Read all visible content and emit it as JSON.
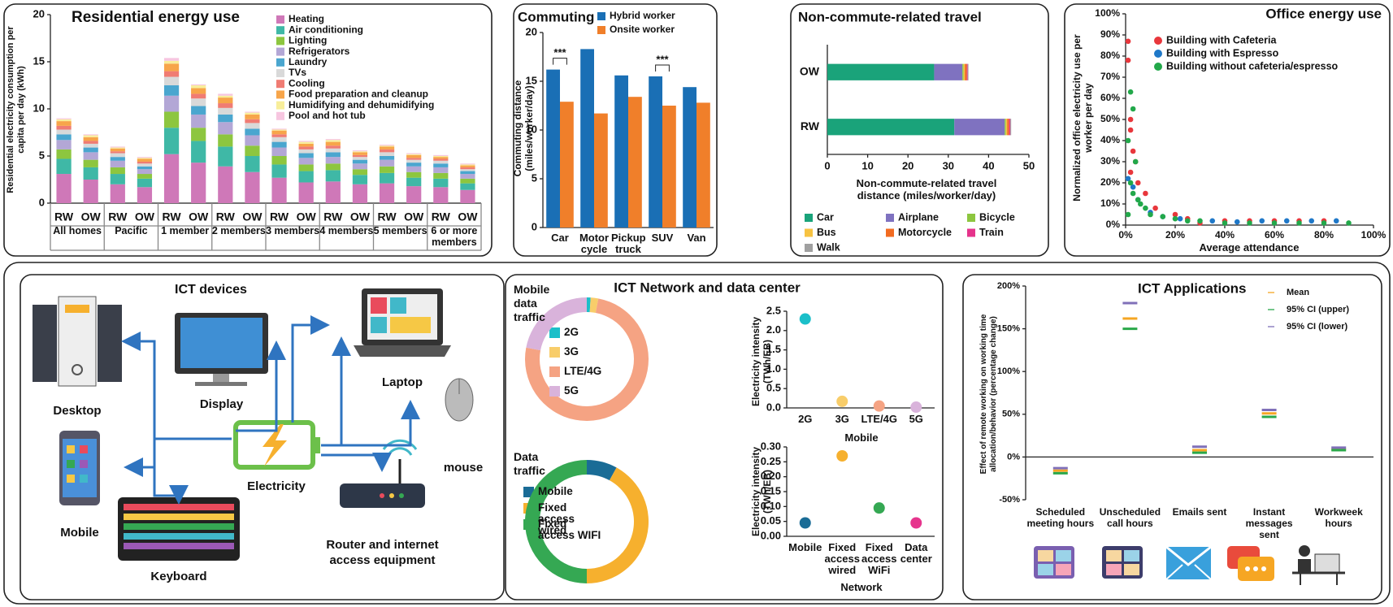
{
  "chart_data": [
    {
      "type": "bar",
      "stacked": true,
      "title": "Residential energy use",
      "ylabel": "Residential electricity consumption per capita per day (kWh)",
      "categories": [
        "RW",
        "OW",
        "RW",
        "OW",
        "RW",
        "OW",
        "RW",
        "OW",
        "RW",
        "OW",
        "RW",
        "OW",
        "RW",
        "OW",
        "RW",
        "OW"
      ],
      "groups": [
        "All homes",
        "Pacific",
        "1 member",
        "2 members",
        "3 members",
        "4 members",
        "5 members",
        "6 or more members"
      ],
      "ylim": [
        0,
        20
      ],
      "yticks": [
        0,
        5,
        10,
        15,
        20
      ],
      "series": [
        {
          "name": "Heating",
          "color": "#cf78b8",
          "values": [
            3.1,
            2.5,
            2.0,
            1.7,
            5.2,
            4.3,
            3.9,
            3.3,
            2.7,
            2.2,
            2.3,
            2.0,
            2.1,
            1.8,
            1.7,
            1.4
          ]
        },
        {
          "name": "Air conditioning",
          "color": "#3fb8a6",
          "values": [
            1.6,
            1.3,
            1.1,
            0.9,
            2.8,
            2.3,
            2.1,
            1.7,
            1.4,
            1.2,
            1.2,
            1.0,
            1.1,
            0.9,
            0.9,
            0.7
          ]
        },
        {
          "name": "Lighting",
          "color": "#8dc63f",
          "values": [
            1.0,
            0.8,
            0.7,
            0.5,
            1.7,
            1.4,
            1.3,
            1.1,
            0.9,
            0.7,
            0.7,
            0.6,
            0.7,
            0.6,
            0.6,
            0.5
          ]
        },
        {
          "name": "Refrigerators",
          "color": "#b3a7d6",
          "values": [
            1.0,
            0.8,
            0.7,
            0.5,
            1.7,
            1.4,
            1.3,
            1.1,
            0.9,
            0.7,
            0.7,
            0.6,
            0.7,
            0.6,
            0.6,
            0.5
          ]
        },
        {
          "name": "Laundry",
          "color": "#4aa6cf",
          "values": [
            0.6,
            0.5,
            0.4,
            0.3,
            1.1,
            0.9,
            0.8,
            0.7,
            0.6,
            0.5,
            0.5,
            0.4,
            0.4,
            0.4,
            0.4,
            0.3
          ]
        },
        {
          "name": "TVs",
          "color": "#d9d9d9",
          "values": [
            0.5,
            0.4,
            0.4,
            0.3,
            0.9,
            0.8,
            0.7,
            0.6,
            0.5,
            0.4,
            0.4,
            0.3,
            0.4,
            0.3,
            0.3,
            0.2
          ]
        },
        {
          "name": "Cooling",
          "color": "#f07c73",
          "values": [
            0.4,
            0.3,
            0.2,
            0.2,
            0.6,
            0.5,
            0.5,
            0.4,
            0.3,
            0.3,
            0.3,
            0.2,
            0.3,
            0.2,
            0.2,
            0.2
          ]
        },
        {
          "name": "Food preparation and cleanup",
          "color": "#f7a54a",
          "values": [
            0.5,
            0.4,
            0.3,
            0.3,
            0.8,
            0.6,
            0.6,
            0.5,
            0.4,
            0.3,
            0.4,
            0.3,
            0.3,
            0.3,
            0.2,
            0.2
          ]
        },
        {
          "name": "Humidifying and dehumidifying",
          "color": "#f8ee9a",
          "values": [
            0.2,
            0.2,
            0.1,
            0.1,
            0.3,
            0.3,
            0.2,
            0.2,
            0.1,
            0.2,
            0.2,
            0.1,
            0.1,
            0.1,
            0.1,
            0.1
          ]
        },
        {
          "name": "Pool and hot tub",
          "color": "#f7c6e0",
          "values": [
            0.1,
            0.1,
            0.1,
            0.1,
            0.3,
            0.1,
            0.2,
            0.1,
            0.1,
            0.1,
            0.1,
            0.1,
            0.1,
            0.1,
            0.1,
            0.1
          ]
        }
      ]
    },
    {
      "type": "bar",
      "title": "Commuting",
      "ylabel": "Commuting distance (miles/worker/day)",
      "categories": [
        "Car",
        "Motor cycle",
        "Pickup truck",
        "SUV",
        "Van"
      ],
      "ylim": [
        0,
        20
      ],
      "yticks": [
        0,
        5,
        10,
        15,
        20
      ],
      "series": [
        {
          "name": "Hybrid worker",
          "color": "#1a6fb5",
          "values": [
            16.2,
            18.3,
            15.6,
            15.5,
            14.4
          ]
        },
        {
          "name": "Onsite worker",
          "color": "#f07f2a",
          "values": [
            12.9,
            11.7,
            13.4,
            12.5,
            12.8
          ]
        }
      ],
      "annotations": [
        {
          "text": "***",
          "category": "Car"
        },
        {
          "text": "***",
          "category": "SUV"
        }
      ]
    },
    {
      "type": "bar",
      "stacked": true,
      "orientation": "horizontal",
      "title": "Non-commute-related travel",
      "xlabel": "Non-commute-related travel distance (miles/worker/day)",
      "categories": [
        "OW",
        "RW"
      ],
      "xlim": [
        0,
        50
      ],
      "xticks": [
        0,
        10,
        20,
        30,
        40,
        50
      ],
      "series": [
        {
          "name": "Car",
          "color": "#1aa37a",
          "values": [
            26.5,
            31.5
          ]
        },
        {
          "name": "Airplane",
          "color": "#7f72c0",
          "values": [
            7,
            12.5
          ]
        },
        {
          "name": "Bicycle",
          "color": "#8dc63f",
          "values": [
            0.3,
            0.3
          ]
        },
        {
          "name": "Bus",
          "color": "#f7c342",
          "values": [
            0.3,
            0.3
          ]
        },
        {
          "name": "Motorcycle",
          "color": "#f26b21",
          "values": [
            0.5,
            0.5
          ]
        },
        {
          "name": "Train",
          "color": "#e5338b",
          "values": [
            0.2,
            0.3
          ]
        },
        {
          "name": "Walk",
          "color": "#a0a0a0",
          "values": [
            0.2,
            0.2
          ]
        }
      ]
    },
    {
      "type": "scatter",
      "title": "Office energy use",
      "xlabel": "Average attendance",
      "ylabel": "Normalized office electricity use per worker per day",
      "xlim": [
        0,
        100
      ],
      "xticks": [
        {
          "value": 0,
          "label": "0%"
        },
        {
          "value": 20,
          "label": "20%"
        },
        {
          "value": 40,
          "label": "40%"
        },
        {
          "value": 60,
          "label": "60%"
        },
        {
          "value": 80,
          "label": "80%"
        },
        {
          "value": 100,
          "label": "100%"
        }
      ],
      "ylim": [
        0,
        100
      ],
      "yticks": [
        {
          "value": 0,
          "label": "0%"
        },
        {
          "value": 10,
          "label": "10%"
        },
        {
          "value": 20,
          "label": "20%"
        },
        {
          "value": 30,
          "label": "30%"
        },
        {
          "value": 40,
          "label": "40%"
        },
        {
          "value": 50,
          "label": "50%"
        },
        {
          "value": 60,
          "label": "60%"
        },
        {
          "value": 70,
          "label": "70%"
        },
        {
          "value": 80,
          "label": "80%"
        },
        {
          "value": 90,
          "label": "90%"
        },
        {
          "value": 100,
          "label": "100%"
        }
      ],
      "series": [
        {
          "name": "Building with Cafeteria",
          "color": "#e8373c",
          "x": [
            1,
            1,
            2,
            2,
            3,
            4,
            2,
            5,
            8,
            12,
            20,
            25,
            40,
            50,
            60,
            70,
            80,
            30
          ],
          "y": [
            87,
            78,
            50,
            45,
            35,
            30,
            25,
            20,
            15,
            8,
            5,
            3,
            2,
            2,
            2,
            2,
            2,
            1
          ]
        },
        {
          "name": "Building with Espresso",
          "color": "#1f78c8",
          "x": [
            1,
            3,
            5,
            10,
            15,
            22,
            35,
            45,
            55,
            65,
            75,
            85
          ],
          "y": [
            22,
            18,
            12,
            6,
            4,
            3,
            2,
            1.5,
            2,
            2,
            2,
            2
          ]
        },
        {
          "name": "Building without cafeteria/espresso",
          "color": "#22a84a",
          "x": [
            2,
            3,
            1,
            4,
            2,
            3,
            5,
            6,
            8,
            1,
            10,
            15,
            20,
            25,
            30,
            40,
            50,
            60,
            70,
            80,
            90
          ],
          "y": [
            63,
            55,
            40,
            30,
            20,
            15,
            12,
            10,
            8,
            5,
            5,
            4,
            3,
            2,
            2,
            1,
            1,
            1,
            1,
            1,
            1
          ]
        }
      ]
    },
    {
      "type": "pie",
      "donut": true,
      "title": "Mobile data traffic",
      "categories": [
        "2G",
        "3G",
        "LTE/4G",
        "5G"
      ],
      "values": [
        1,
        2,
        75,
        22
      ],
      "colors": [
        "#1bbfc9",
        "#f8cd6a",
        "#f5a383",
        "#d9b3db"
      ]
    },
    {
      "type": "pie",
      "donut": true,
      "title": "Data traffic",
      "categories": [
        "Mobile",
        "Fixed access wired",
        "Fixed access WIFI"
      ],
      "values": [
        8,
        42,
        50
      ],
      "colors": [
        "#1a6c96",
        "#f6b02e",
        "#35a853"
      ]
    },
    {
      "type": "scatter",
      "xlabel": "Mobile",
      "ylabel": "Electricity intensity (TWh/EB)",
      "categories": [
        "2G",
        "3G",
        "LTE/4G",
        "5G"
      ],
      "values": [
        2.3,
        0.17,
        0.05,
        0.02
      ],
      "colors": [
        "#1bbfc9",
        "#f8cd6a",
        "#f5a383",
        "#d9b3db"
      ],
      "ylim": [
        0,
        2.5
      ],
      "yticks": [
        {
          "value": 0,
          "label": "0.0"
        },
        0.5,
        {
          "value": 1,
          "label": "1.0"
        },
        1.5,
        {
          "value": 2,
          "label": "2.0"
        },
        2.5
      ]
    },
    {
      "type": "scatter",
      "xlabel": "Network",
      "ylabel": "Electricity intensity (TWh/EB)",
      "categories": [
        "Mobile",
        "Fixed access wired",
        "Fixed access WiFi",
        "Data center"
      ],
      "values": [
        0.045,
        0.27,
        0.095,
        0.045
      ],
      "colors": [
        "#1a6c96",
        "#f6b02e",
        "#35a853",
        "#e6358d"
      ],
      "ylim": [
        0,
        0.3
      ],
      "yticks": [
        {
          "value": 0,
          "label": "0.00"
        },
        0.05,
        {
          "value": 0.1,
          "label": "0.10"
        },
        0.15,
        {
          "value": 0.2,
          "label": "0.20"
        },
        0.25,
        {
          "value": 0.3,
          "label": "0.30"
        }
      ]
    },
    {
      "type": "interval",
      "title": "ICT Applications",
      "ylabel": "Effect of remote working on working time allocation/behavior (percentage change)",
      "categories": [
        "Scheduled meeting hours",
        "Unscheduled call hours",
        "Emails sent",
        "Instant messages sent",
        "Workweek hours"
      ],
      "ylim": [
        -50,
        200
      ],
      "yticks": [
        {
          "value": -50,
          "label": "-50%"
        },
        {
          "value": 0,
          "label": "0%"
        },
        {
          "value": 50,
          "label": "50%"
        },
        {
          "value": 100,
          "label": "100%"
        },
        {
          "value": 150,
          "label": "150%"
        },
        {
          "value": 200,
          "label": "200%"
        }
      ],
      "series": [
        {
          "name": "Mean",
          "color": "#f5a623",
          "values": [
            -16,
            162,
            8,
            51,
            9
          ]
        },
        {
          "name": "95% CI (upper)",
          "color": "#2aa84a",
          "values": [
            -19,
            150,
            5,
            47,
            8
          ]
        },
        {
          "name": "95% CI (lower)",
          "color": "#8070b8",
          "values": [
            -13,
            180,
            12,
            55,
            11
          ]
        }
      ]
    }
  ],
  "ict_devices": {
    "title": "ICT devices",
    "desktop": "Desktop",
    "display": "Display",
    "laptop": "Laptop",
    "mouse": "mouse",
    "mobile": "Mobile",
    "keyboard": "Keyboard",
    "electricity": "Electricity",
    "router": "Router and internet access equipment"
  },
  "ict_network": {
    "title": "ICT Network and data center"
  }
}
